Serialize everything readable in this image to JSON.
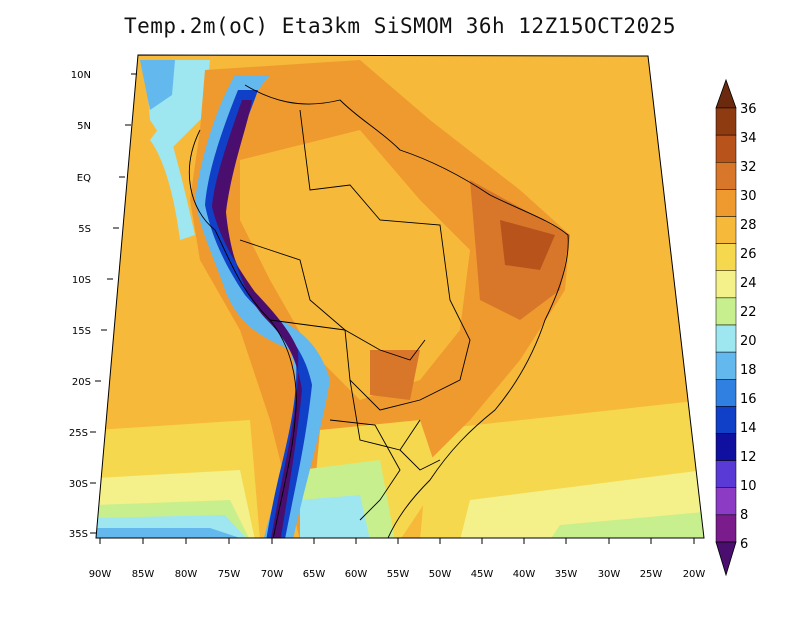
{
  "title": "Temp.2m(oC) Eta3km SiSMOM 36h 12Z15OCT2025",
  "map": {
    "variable": "Temp.2m",
    "units": "oC",
    "model": "Eta3km SiSMOM",
    "forecast": "36h",
    "run": "12Z15OCT2025",
    "lon_labels": [
      "90W",
      "85W",
      "80W",
      "75W",
      "70W",
      "65W",
      "60W",
      "55W",
      "50W",
      "45W",
      "40W",
      "35W",
      "30W",
      "25W",
      "20W"
    ],
    "lat_labels": [
      "10N",
      "5N",
      "EQ",
      "5S",
      "10S",
      "15S",
      "20S",
      "25S",
      "30S",
      "35S"
    ]
  },
  "colorbar": {
    "labels": [
      "36",
      "34",
      "32",
      "30",
      "28",
      "26",
      "24",
      "22",
      "20",
      "18",
      "16",
      "14",
      "12",
      "10",
      "8",
      "6"
    ],
    "colors": [
      "#6b2a0e",
      "#8f3b12",
      "#b8531c",
      "#d8772a",
      "#ef9a2e",
      "#f6b93a",
      "#f5d84e",
      "#f4f08a",
      "#c8ef8e",
      "#9ee6f0",
      "#63b8ee",
      "#2f80e0",
      "#1040c8",
      "#1010a0",
      "#5a3ad6",
      "#8c3cc4",
      "#7a1c8c",
      "#4a0f6e"
    ]
  }
}
